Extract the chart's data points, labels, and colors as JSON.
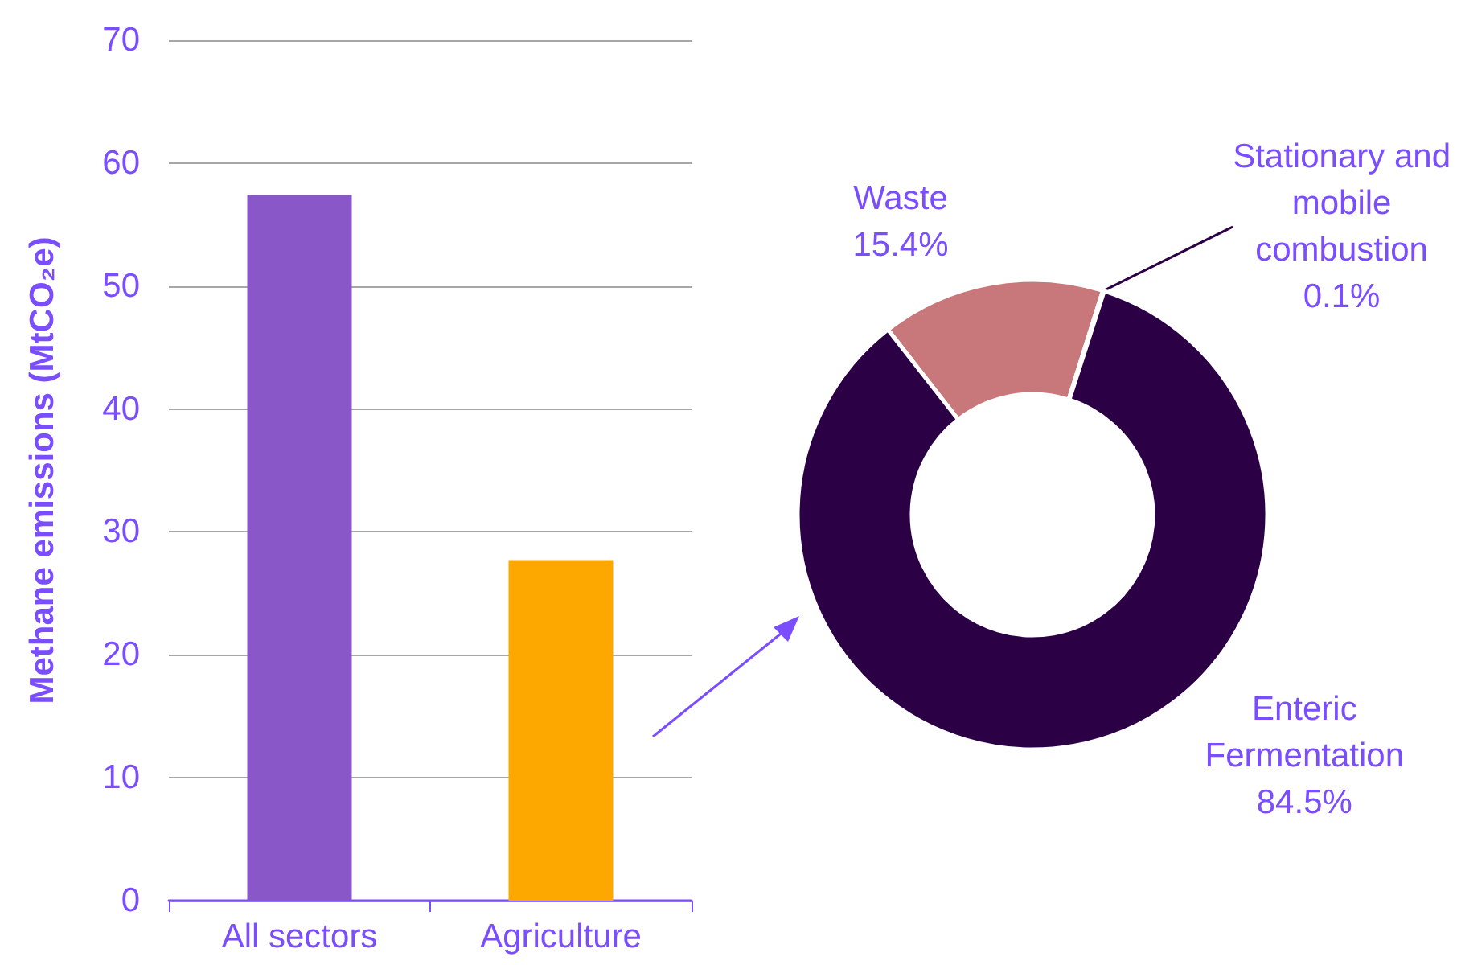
{
  "chart_data": [
    {
      "type": "bar",
      "ylabel": "Methane emissions (MtCO₂e)",
      "categories": [
        "All sectors",
        "Agriculture"
      ],
      "values": [
        57.4,
        27.7
      ],
      "colors": [
        "#8a57c8",
        "#fca800"
      ],
      "ylim": [
        0,
        70
      ],
      "yticks": [
        0,
        10,
        20,
        30,
        40,
        50,
        60,
        70
      ],
      "grid": "y",
      "legend": false
    },
    {
      "type": "donut",
      "categories": [
        "Waste",
        "Stationary and mobile combustion",
        "Enteric Fermentation"
      ],
      "values": [
        15.4,
        0.1,
        84.5
      ],
      "colors": [
        "#c8777b",
        "#3a1a5c",
        "#2b0045"
      ],
      "value_labels": [
        "15.4%",
        "0.1%",
        "84.5%"
      ],
      "legend": false
    }
  ]
}
